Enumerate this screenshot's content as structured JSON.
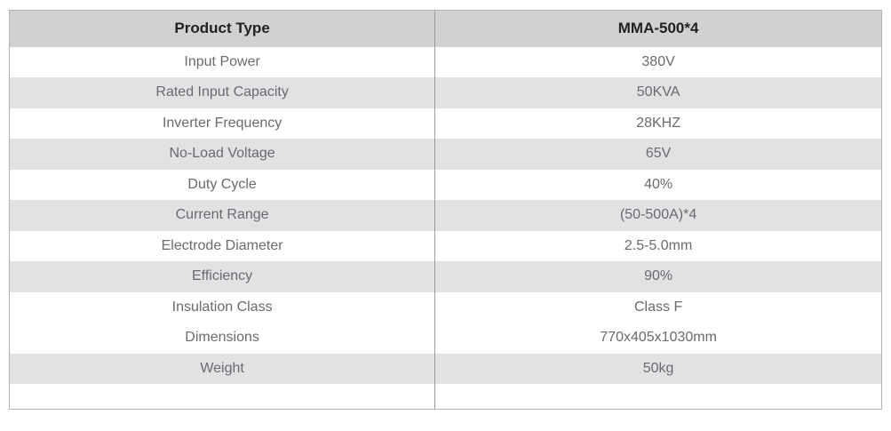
{
  "table": {
    "header": {
      "product_type": "Product Type",
      "model": "MMA-500*4"
    },
    "rows": [
      {
        "label": "Input Power",
        "value": "380V"
      },
      {
        "label": "Rated Input Capacity",
        "value": "50KVA"
      },
      {
        "label": "Inverter Frequency",
        "value": "28KHZ"
      },
      {
        "label": "No-Load Voltage",
        "value": "65V"
      },
      {
        "label": "Duty Cycle",
        "value": "40%"
      },
      {
        "label": "Current Range",
        "value": "(50-500A)*4"
      },
      {
        "label": "Electrode Diameter",
        "value": "2.5-5.0mm"
      },
      {
        "label": "Efficiency",
        "value": "90%"
      },
      {
        "label": "Insulation Class",
        "value": "Class F"
      },
      {
        "label": "Dimensions",
        "value": "770x405x1030mm"
      },
      {
        "label": "Weight",
        "value": "50kg"
      }
    ],
    "colors": {
      "header_bg": "#d1d1d3",
      "stripe_bg": "#e2e2e4",
      "border": "#b5b5b5",
      "divider": "#9c9c9e",
      "header_text": "#222222",
      "cell_text": "#6a6a6f"
    }
  }
}
